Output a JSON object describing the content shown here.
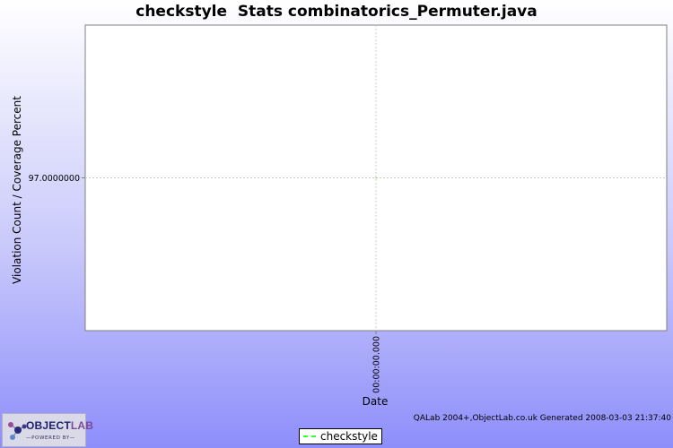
{
  "chart_data": {
    "type": "line",
    "title": "checkstyle  Stats combinatorics_Permuter.java",
    "xlabel": "Date",
    "ylabel": "Violation Count / Coverage Percent",
    "x_ticks": [
      "00:00:00.000"
    ],
    "y_ticks": [
      97.0
    ],
    "y_tick_labels": [
      "97.0000000"
    ],
    "ylim": [
      96.0,
      98.0
    ],
    "grid": true,
    "legend": "bottom-center",
    "series": [
      {
        "name": "checkstyle",
        "color": "#33ff33",
        "style": "dashed",
        "x": [
          "00:00:00.000"
        ],
        "y": [
          97.0
        ]
      }
    ]
  },
  "footer": {
    "text": "QALab 2004+,ObjectLab.co.uk  Generated 2008-03-03 21:37:40"
  },
  "logo": {
    "brand_a": "OBJECT",
    "brand_b": "LAB",
    "tagline": "POWERED BY"
  }
}
